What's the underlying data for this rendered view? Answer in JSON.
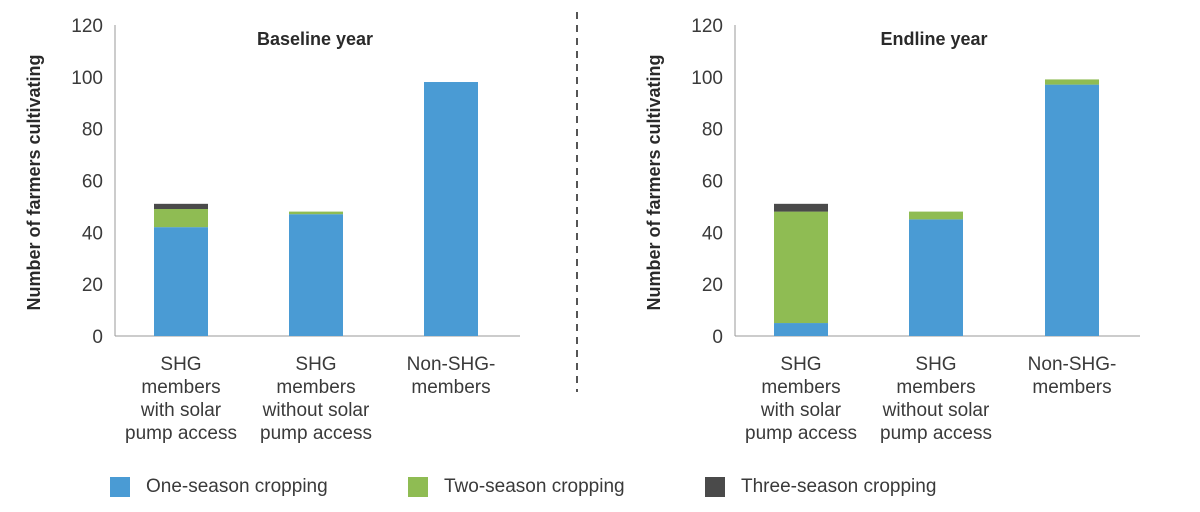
{
  "chart_data": [
    {
      "type": "bar",
      "stacked": true,
      "title": "Baseline year",
      "ylabel": "Number of farmers cultivating",
      "xlabel": "",
      "ylim": [
        0,
        120
      ],
      "yticks": [
        0,
        20,
        40,
        60,
        80,
        100,
        120
      ],
      "categories": [
        "SHG members with solar pump access",
        "SHG members without solar pump access",
        "Non-SHG-members"
      ],
      "category_lines": [
        [
          "SHG",
          "members",
          "with solar",
          "pump access"
        ],
        [
          "SHG",
          "members",
          "without solar",
          "pump access"
        ],
        [
          "Non-SHG-",
          "members"
        ]
      ],
      "series": [
        {
          "name": "One-season cropping",
          "color": "#4a9bd4",
          "values": [
            42,
            47,
            98
          ]
        },
        {
          "name": "Two-season cropping",
          "color": "#8fbc53",
          "values": [
            7,
            1,
            0
          ]
        },
        {
          "name": "Three-season cropping",
          "color": "#4a4a4a",
          "values": [
            2,
            0,
            0
          ]
        }
      ],
      "grid": false
    },
    {
      "type": "bar",
      "stacked": true,
      "title": "Endline year",
      "ylabel": "Number of farmers cultivating",
      "xlabel": "",
      "ylim": [
        0,
        120
      ],
      "yticks": [
        0,
        20,
        40,
        60,
        80,
        100,
        120
      ],
      "categories": [
        "SHG members with solar pump access",
        "SHG members without solar pump access",
        "Non-SHG-members"
      ],
      "category_lines": [
        [
          "SHG",
          "members",
          "with solar",
          "pump access"
        ],
        [
          "SHG",
          "members",
          "without solar",
          "pump access"
        ],
        [
          "Non-SHG-",
          "members"
        ]
      ],
      "series": [
        {
          "name": "One-season cropping",
          "color": "#4a9bd4",
          "values": [
            5,
            45,
            97
          ]
        },
        {
          "name": "Two-season cropping",
          "color": "#8fbc53",
          "values": [
            43,
            3,
            2
          ]
        },
        {
          "name": "Three-season cropping",
          "color": "#4a4a4a",
          "values": [
            3,
            0,
            0
          ]
        }
      ],
      "grid": false
    }
  ],
  "legend": {
    "placement": "bottom",
    "items": [
      {
        "label": "One-season cropping",
        "color": "#4a9bd4"
      },
      {
        "label": "Two-season cropping",
        "color": "#8fbc53"
      },
      {
        "label": "Three-season cropping",
        "color": "#4a4a4a"
      }
    ]
  }
}
